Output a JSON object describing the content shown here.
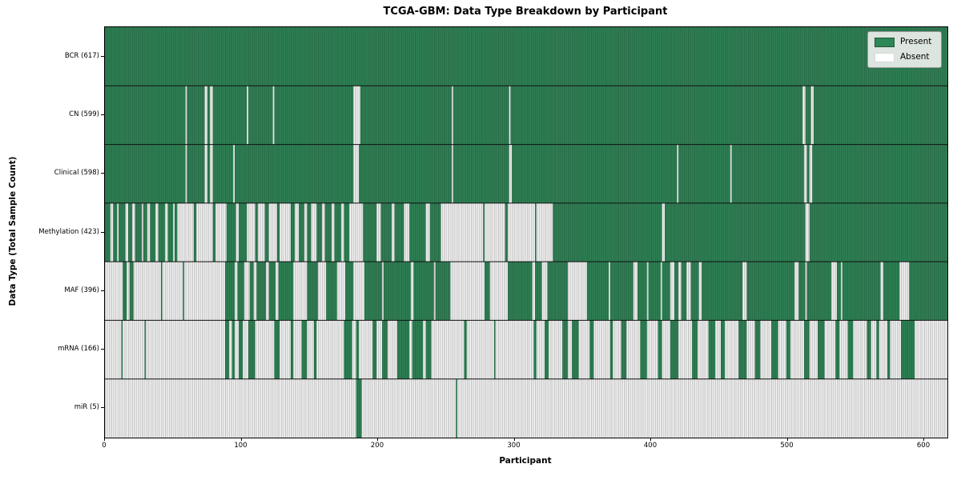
{
  "title": "TCGA-GBM: Data Type Breakdown by Participant",
  "axes": {
    "x_label": "Participant",
    "y_label": "Data Type (Total Sample Count)",
    "x_ticks": [
      0,
      100,
      200,
      300,
      400,
      500,
      600
    ]
  },
  "legend": {
    "present_label": "Present",
    "absent_label": "Absent"
  },
  "colors": {
    "present": "#2e8757",
    "absent": "#ffffff",
    "edge": "rgba(30,30,30,0.42)",
    "divider": "#111111"
  },
  "chart_data": {
    "type": "heatmap",
    "x_range": [
      0,
      617
    ],
    "x_axis": "participant index",
    "value_encoding": {
      "1": "Present",
      "0": "Absent"
    },
    "rows": [
      {
        "name": "BCR",
        "label": "BCR (617)",
        "present_count": 617,
        "runs": [
          [
            617,
            1
          ]
        ]
      },
      {
        "name": "CN",
        "label": "CN (599)",
        "present_count": 599,
        "runs": [
          [
            59,
            1
          ],
          [
            1,
            0
          ],
          [
            13,
            1
          ],
          [
            2,
            0
          ],
          [
            2,
            1
          ],
          [
            2,
            0
          ],
          [
            25,
            1
          ],
          [
            1,
            0
          ],
          [
            18,
            1
          ],
          [
            1,
            0
          ],
          [
            58,
            1
          ],
          [
            5,
            0
          ],
          [
            67,
            1
          ],
          [
            1,
            0
          ],
          [
            41,
            1
          ],
          [
            1,
            0
          ],
          [
            214,
            1
          ],
          [
            2,
            0
          ],
          [
            4,
            1
          ],
          [
            2,
            0
          ],
          [
            98,
            1
          ]
        ]
      },
      {
        "name": "Clinical",
        "label": "Clinical (598)",
        "present_count": 598,
        "runs": [
          [
            59,
            1
          ],
          [
            1,
            0
          ],
          [
            13,
            1
          ],
          [
            2,
            0
          ],
          [
            2,
            1
          ],
          [
            2,
            0
          ],
          [
            15,
            1
          ],
          [
            1,
            0
          ],
          [
            87,
            1
          ],
          [
            4,
            0
          ],
          [
            68,
            1
          ],
          [
            1,
            0
          ],
          [
            41,
            1
          ],
          [
            2,
            0
          ],
          [
            121,
            1
          ],
          [
            1,
            0
          ],
          [
            38,
            1
          ],
          [
            1,
            0
          ],
          [
            53,
            1
          ],
          [
            2,
            0
          ],
          [
            2,
            1
          ],
          [
            2,
            0
          ],
          [
            99,
            1
          ]
        ]
      },
      {
        "name": "Methylation",
        "label": "Methylation (423)",
        "present_count": 423,
        "runs": [
          [
            4,
            1
          ],
          [
            2,
            0
          ],
          [
            3,
            1
          ],
          [
            1,
            0
          ],
          [
            5,
            1
          ],
          [
            2,
            0
          ],
          [
            3,
            1
          ],
          [
            2,
            0
          ],
          [
            5,
            1
          ],
          [
            1,
            0
          ],
          [
            3,
            1
          ],
          [
            2,
            0
          ],
          [
            4,
            1
          ],
          [
            2,
            0
          ],
          [
            5,
            1
          ],
          [
            2,
            0
          ],
          [
            4,
            1
          ],
          [
            1,
            0
          ],
          [
            2,
            1
          ],
          [
            12,
            0
          ],
          [
            2,
            1
          ],
          [
            12,
            0
          ],
          [
            2,
            1
          ],
          [
            8,
            0
          ],
          [
            7,
            1
          ],
          [
            2,
            0
          ],
          [
            6,
            1
          ],
          [
            6,
            0
          ],
          [
            2,
            1
          ],
          [
            5,
            0
          ],
          [
            3,
            1
          ],
          [
            6,
            0
          ],
          [
            2,
            1
          ],
          [
            8,
            0
          ],
          [
            3,
            1
          ],
          [
            3,
            0
          ],
          [
            4,
            1
          ],
          [
            2,
            0
          ],
          [
            3,
            1
          ],
          [
            4,
            0
          ],
          [
            4,
            1
          ],
          [
            2,
            0
          ],
          [
            5,
            1
          ],
          [
            2,
            0
          ],
          [
            5,
            1
          ],
          [
            2,
            0
          ],
          [
            4,
            1
          ],
          [
            10,
            0
          ],
          [
            10,
            1
          ],
          [
            3,
            0
          ],
          [
            8,
            1
          ],
          [
            2,
            0
          ],
          [
            7,
            1
          ],
          [
            4,
            0
          ],
          [
            12,
            1
          ],
          [
            3,
            0
          ],
          [
            8,
            1
          ],
          [
            31,
            0
          ],
          [
            1,
            1
          ],
          [
            15,
            0
          ],
          [
            2,
            1
          ],
          [
            20,
            0
          ],
          [
            1,
            1
          ],
          [
            12,
            0
          ],
          [
            80,
            1
          ],
          [
            2,
            0
          ],
          [
            103,
            1
          ],
          [
            3,
            0
          ],
          [
            101,
            1
          ]
        ]
      },
      {
        "name": "MAF",
        "label": "MAF (396)",
        "present_count": 396,
        "runs": [
          [
            13,
            0
          ],
          [
            3,
            1
          ],
          [
            2,
            0
          ],
          [
            3,
            1
          ],
          [
            20,
            0
          ],
          [
            1,
            1
          ],
          [
            15,
            0
          ],
          [
            1,
            1
          ],
          [
            30,
            0
          ],
          [
            7,
            1
          ],
          [
            2,
            0
          ],
          [
            5,
            1
          ],
          [
            4,
            0
          ],
          [
            3,
            1
          ],
          [
            2,
            0
          ],
          [
            7,
            1
          ],
          [
            2,
            0
          ],
          [
            5,
            1
          ],
          [
            2,
            0
          ],
          [
            11,
            1
          ],
          [
            10,
            0
          ],
          [
            8,
            1
          ],
          [
            6,
            0
          ],
          [
            8,
            1
          ],
          [
            6,
            0
          ],
          [
            6,
            1
          ],
          [
            8,
            0
          ],
          [
            13,
            1
          ],
          [
            1,
            0
          ],
          [
            20,
            1
          ],
          [
            2,
            0
          ],
          [
            15,
            1
          ],
          [
            1,
            0
          ],
          [
            11,
            1
          ],
          [
            25,
            0
          ],
          [
            4,
            1
          ],
          [
            13,
            0
          ],
          [
            18,
            1
          ],
          [
            2,
            0
          ],
          [
            5,
            1
          ],
          [
            4,
            0
          ],
          [
            15,
            1
          ],
          [
            14,
            0
          ],
          [
            16,
            1
          ],
          [
            1,
            0
          ],
          [
            17,
            1
          ],
          [
            3,
            0
          ],
          [
            7,
            1
          ],
          [
            1,
            0
          ],
          [
            9,
            1
          ],
          [
            1,
            0
          ],
          [
            6,
            1
          ],
          [
            3,
            0
          ],
          [
            3,
            1
          ],
          [
            2,
            0
          ],
          [
            4,
            1
          ],
          [
            3,
            0
          ],
          [
            6,
            1
          ],
          [
            2,
            0
          ],
          [
            30,
            1
          ],
          [
            3,
            0
          ],
          [
            35,
            1
          ],
          [
            3,
            0
          ],
          [
            5,
            1
          ],
          [
            1,
            0
          ],
          [
            18,
            1
          ],
          [
            4,
            0
          ],
          [
            3,
            1
          ],
          [
            1,
            0
          ],
          [
            28,
            1
          ],
          [
            2,
            0
          ],
          [
            12,
            1
          ],
          [
            7,
            0
          ],
          [
            28,
            1
          ]
        ]
      },
      {
        "name": "mRNA",
        "label": "mRNA (166)",
        "present_count": 166,
        "runs": [
          [
            12,
            0
          ],
          [
            1,
            1
          ],
          [
            16,
            0
          ],
          [
            1,
            1
          ],
          [
            58,
            0
          ],
          [
            3,
            1
          ],
          [
            2,
            0
          ],
          [
            2,
            1
          ],
          [
            3,
            0
          ],
          [
            3,
            1
          ],
          [
            4,
            0
          ],
          [
            5,
            1
          ],
          [
            14,
            0
          ],
          [
            4,
            1
          ],
          [
            8,
            0
          ],
          [
            2,
            1
          ],
          [
            6,
            0
          ],
          [
            4,
            1
          ],
          [
            5,
            0
          ],
          [
            2,
            1
          ],
          [
            20,
            0
          ],
          [
            6,
            1
          ],
          [
            3,
            0
          ],
          [
            2,
            1
          ],
          [
            10,
            0
          ],
          [
            3,
            1
          ],
          [
            4,
            0
          ],
          [
            4,
            1
          ],
          [
            7,
            0
          ],
          [
            9,
            1
          ],
          [
            2,
            0
          ],
          [
            8,
            1
          ],
          [
            2,
            0
          ],
          [
            4,
            1
          ],
          [
            24,
            0
          ],
          [
            2,
            1
          ],
          [
            20,
            0
          ],
          [
            1,
            1
          ],
          [
            28,
            0
          ],
          [
            2,
            1
          ],
          [
            6,
            0
          ],
          [
            3,
            1
          ],
          [
            10,
            0
          ],
          [
            4,
            1
          ],
          [
            3,
            0
          ],
          [
            5,
            1
          ],
          [
            8,
            0
          ],
          [
            3,
            1
          ],
          [
            12,
            0
          ],
          [
            2,
            1
          ],
          [
            6,
            0
          ],
          [
            4,
            1
          ],
          [
            10,
            0
          ],
          [
            5,
            1
          ],
          [
            8,
            0
          ],
          [
            3,
            1
          ],
          [
            6,
            0
          ],
          [
            6,
            1
          ],
          [
            10,
            0
          ],
          [
            4,
            1
          ],
          [
            8,
            0
          ],
          [
            5,
            1
          ],
          [
            4,
            0
          ],
          [
            3,
            1
          ],
          [
            10,
            0
          ],
          [
            6,
            1
          ],
          [
            6,
            0
          ],
          [
            4,
            1
          ],
          [
            8,
            0
          ],
          [
            5,
            1
          ],
          [
            6,
            0
          ],
          [
            3,
            1
          ],
          [
            10,
            0
          ],
          [
            4,
            1
          ],
          [
            6,
            0
          ],
          [
            5,
            1
          ],
          [
            8,
            0
          ],
          [
            3,
            1
          ],
          [
            6,
            0
          ],
          [
            4,
            1
          ],
          [
            10,
            0
          ],
          [
            3,
            1
          ],
          [
            4,
            0
          ],
          [
            2,
            1
          ],
          [
            6,
            0
          ],
          [
            2,
            1
          ],
          [
            8,
            0
          ],
          [
            10,
            1
          ],
          [
            24,
            0
          ]
        ]
      },
      {
        "name": "miR",
        "label": "miR (5)",
        "present_count": 5,
        "runs": [
          [
            184,
            0
          ],
          [
            4,
            1
          ],
          [
            69,
            0
          ],
          [
            1,
            1
          ],
          [
            359,
            0
          ]
        ]
      }
    ]
  }
}
